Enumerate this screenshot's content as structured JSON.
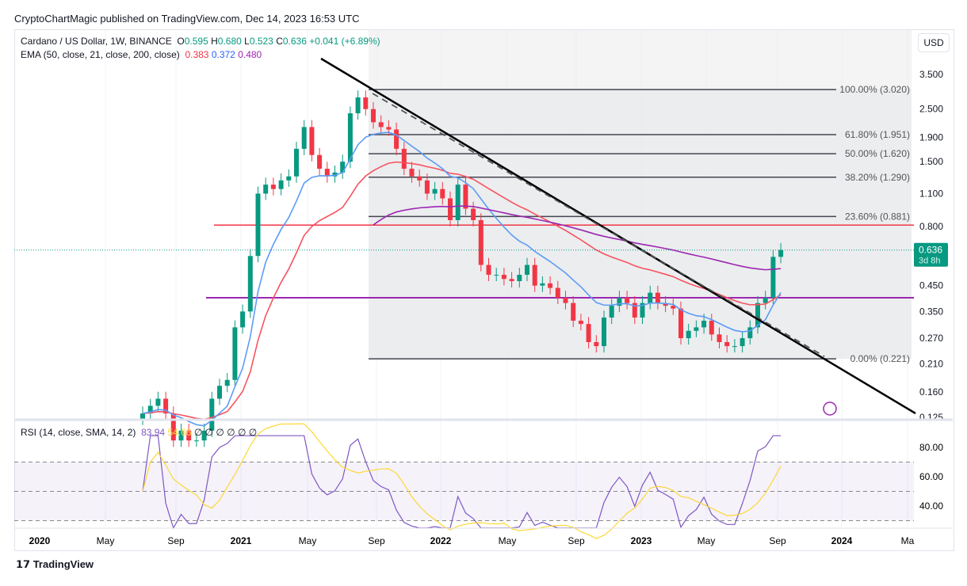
{
  "publisher": "CryptoChartMagic published on TradingView.com, Dec 14, 2023 16:53 UTC",
  "legend": {
    "symbol": "Cardano / US Dollar, 1W, BINANCE",
    "o": "0.595",
    "h": "0.680",
    "l": "0.523",
    "c": "0.636",
    "chg": "+0.041 (+6.89%)",
    "ema_label": "EMA (50, close, 21, close, 200, close)",
    "ema50": "0.383",
    "ema21": "0.372",
    "ema200": "0.480",
    "rsi_label": "RSI (14, close, SMA, 14, 2)",
    "rsi": "83.94",
    "rsi_sma": "54.66",
    "rsi_na": "∅ ∅ ∅ ∅ ∅ ∅"
  },
  "currency": "USD",
  "price_tag": {
    "value": "0.636",
    "countdown": "3d 8h"
  },
  "brand": "TradingView",
  "colors": {
    "up": "#089981",
    "down": "#f23645",
    "ema50": "#f7525f",
    "ema21": "#5b9cf6",
    "ema200": "#9c27b0",
    "rsi": "#7e57c2",
    "rsi_sma": "#fdd835"
  },
  "chart_data": {
    "type": "candlestick",
    "y_scale": "log",
    "y_ticks": [
      "3.500",
      "2.500",
      "1.900",
      "1.500",
      "1.100",
      "0.800",
      "0.450",
      "0.350",
      "0.270",
      "0.210",
      "0.160",
      "0.125"
    ],
    "x_ticks": [
      "2020",
      "May",
      "Sep",
      "2021",
      "May",
      "Sep",
      "2022",
      "May",
      "Sep",
      "2023",
      "May",
      "Sep",
      "2024",
      "Ma"
    ],
    "rsi_ticks": [
      "80.00",
      "60.00",
      "40.00"
    ],
    "fib_levels": [
      {
        "label": "100.00% (3.020)",
        "price": 3.02
      },
      {
        "label": "61.80% (1.951)",
        "price": 1.951
      },
      {
        "label": "50.00% (1.620)",
        "price": 1.62
      },
      {
        "label": "38.20% (1.290)",
        "price": 1.29
      },
      {
        "label": "23.60% (0.881)",
        "price": 0.881
      },
      {
        "label": "0.00% (0.221)",
        "price": 0.221
      }
    ],
    "horizontal_lines": [
      {
        "price": 0.81,
        "color": "#f23645"
      },
      {
        "price": 0.4,
        "color": "#9c27b0"
      }
    ],
    "start": "2020-07",
    "step_weeks": 2,
    "closes": [
      0.13,
      0.14,
      0.15,
      0.13,
      0.1,
      0.11,
      0.1,
      0.1,
      0.11,
      0.15,
      0.17,
      0.18,
      0.3,
      0.35,
      0.6,
      1.1,
      1.2,
      1.15,
      1.25,
      1.3,
      1.7,
      2.1,
      1.6,
      1.4,
      1.3,
      1.35,
      1.5,
      2.4,
      2.8,
      2.5,
      2.2,
      2.1,
      2.05,
      1.7,
      1.4,
      1.3,
      1.25,
      1.1,
      1.15,
      1.05,
      0.85,
      1.2,
      0.95,
      0.85,
      0.55,
      0.5,
      0.5,
      0.48,
      0.47,
      0.5,
      0.55,
      0.45,
      0.46,
      0.44,
      0.4,
      0.38,
      0.32,
      0.31,
      0.26,
      0.25,
      0.33,
      0.37,
      0.4,
      0.38,
      0.33,
      0.38,
      0.42,
      0.38,
      0.37,
      0.36,
      0.27,
      0.29,
      0.3,
      0.32,
      0.28,
      0.26,
      0.25,
      0.25,
      0.27,
      0.3,
      0.38,
      0.4,
      0.595,
      0.636
    ]
  }
}
